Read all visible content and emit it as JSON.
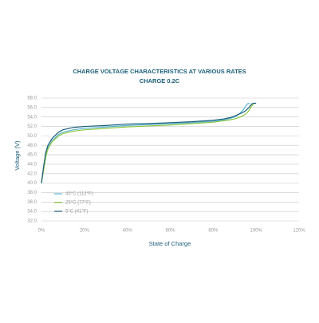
{
  "chart_data": {
    "type": "line",
    "title": "CHARGE VOLTAGE CHARACTERISTICS AT VARIOUS RATES",
    "subtitle": "CHARGE 0.2C",
    "y_label": "Voltage (V)",
    "x_label": "State of Charge",
    "x": [
      0,
      1,
      2,
      3,
      5,
      8,
      10,
      15,
      20,
      30,
      40,
      50,
      60,
      70,
      80,
      85,
      88,
      90,
      92,
      94,
      95,
      96,
      97,
      98,
      99,
      100
    ],
    "series": [
      {
        "name": "45°C (113°F)",
        "color": "#5ab4d6",
        "values": [
          40,
          43,
          46,
          47.5,
          49,
          50.3,
          50.8,
          51.3,
          51.6,
          51.9,
          52.2,
          52.4,
          52.6,
          52.8,
          53.1,
          53.4,
          53.7,
          54,
          54.6,
          55.5,
          56.2,
          56.8,
          56.9,
          null,
          null,
          null
        ]
      },
      {
        "name": "25°C (77°F)",
        "color": "#8cc63f",
        "values": [
          40,
          42.8,
          45.5,
          47.2,
          48.8,
          50,
          50.5,
          51,
          51.3,
          51.6,
          51.9,
          52.1,
          52.3,
          52.6,
          52.9,
          53.2,
          53.4,
          53.6,
          53.9,
          54.3,
          54.6,
          55,
          55.6,
          56.4,
          56.9,
          null
        ]
      },
      {
        "name": "5°C (41°F)",
        "color": "#1b5e7a",
        "values": [
          40,
          43.5,
          46.5,
          48,
          49.5,
          50.8,
          51.3,
          51.8,
          52,
          52.2,
          52.5,
          52.6,
          52.8,
          53,
          53.3,
          53.6,
          53.9,
          54.2,
          54.6,
          55,
          55.3,
          55.7,
          56.2,
          56.8,
          56.9,
          56.9
        ]
      }
    ],
    "xlim": [
      0,
      120
    ],
    "xticks": [
      {
        "value": 0,
        "label": "0%"
      },
      {
        "value": 20,
        "label": "20%"
      },
      {
        "value": 40,
        "label": "40%"
      },
      {
        "value": 60,
        "label": "60%"
      },
      {
        "value": 80,
        "label": "80%"
      },
      {
        "value": 100,
        "label": "100%"
      },
      {
        "value": 120,
        "label": "120%"
      }
    ],
    "ylim": [
      32,
      58
    ],
    "yticks": [
      {
        "value": 32,
        "label": "32.0"
      },
      {
        "value": 34,
        "label": "34.0"
      },
      {
        "value": 36,
        "label": "36.0"
      },
      {
        "value": 38,
        "label": "38.0"
      },
      {
        "value": 40,
        "label": "40.0"
      },
      {
        "value": 42,
        "label": "42.0"
      },
      {
        "value": 44,
        "label": "44.0"
      },
      {
        "value": 46,
        "label": "46.0"
      },
      {
        "value": 48,
        "label": "48.0"
      },
      {
        "value": 50,
        "label": "50.0"
      },
      {
        "value": 52,
        "label": "52.0"
      },
      {
        "value": 54,
        "label": "54.0"
      },
      {
        "value": 56,
        "label": "56.0"
      },
      {
        "value": 58,
        "label": "58.0"
      }
    ],
    "grid": true
  }
}
